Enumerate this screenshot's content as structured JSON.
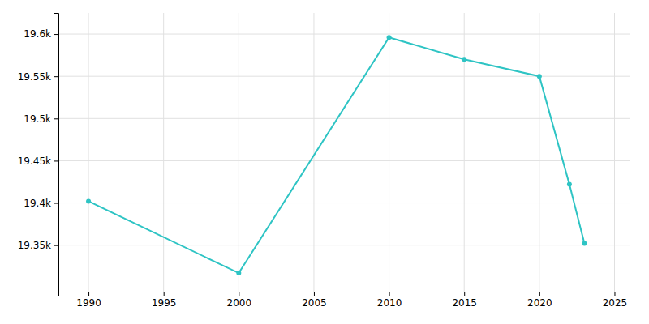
{
  "chart_data": {
    "type": "line",
    "x": [
      1990,
      2000,
      2010,
      2015,
      2020,
      2022,
      2023
    ],
    "values": [
      19402,
      19317,
      19596,
      19570,
      19550,
      19422,
      19352
    ],
    "color": "#2ec4c4",
    "marker": "circle",
    "xlim": [
      1988,
      2026
    ],
    "ylim": [
      19295,
      19625
    ],
    "xticks": [
      1990,
      1995,
      2000,
      2005,
      2010,
      2015,
      2020,
      2025
    ],
    "yticks": [
      {
        "value": 19350,
        "label": "19.35k"
      },
      {
        "value": 19400,
        "label": "19.4k"
      },
      {
        "value": 19450,
        "label": "19.45k"
      },
      {
        "value": 19500,
        "label": "19.5k"
      },
      {
        "value": 19550,
        "label": "19.55k"
      },
      {
        "value": 19600,
        "label": "19.6k"
      }
    ],
    "grid": true
  }
}
